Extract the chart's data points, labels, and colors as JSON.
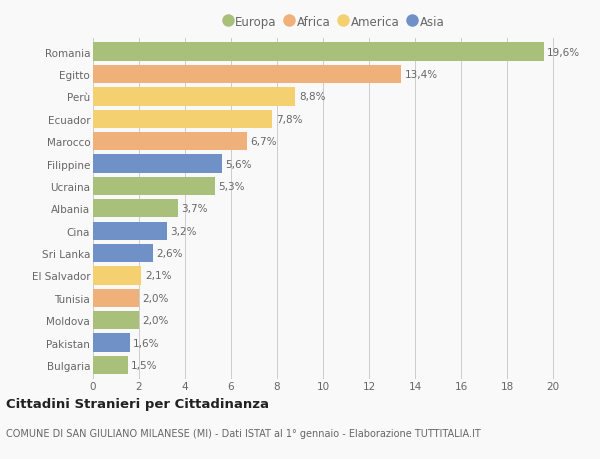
{
  "countries": [
    "Romania",
    "Egitto",
    "Perù",
    "Ecuador",
    "Marocco",
    "Filippine",
    "Ucraina",
    "Albania",
    "Cina",
    "Sri Lanka",
    "El Salvador",
    "Tunisia",
    "Moldova",
    "Pakistan",
    "Bulgaria"
  ],
  "values": [
    19.6,
    13.4,
    8.8,
    7.8,
    6.7,
    5.6,
    5.3,
    3.7,
    3.2,
    2.6,
    2.1,
    2.0,
    2.0,
    1.6,
    1.5
  ],
  "labels": [
    "19,6%",
    "13,4%",
    "8,8%",
    "7,8%",
    "6,7%",
    "5,6%",
    "5,3%",
    "3,7%",
    "3,2%",
    "2,6%",
    "2,1%",
    "2,0%",
    "2,0%",
    "1,6%",
    "1,5%"
  ],
  "colors": [
    "#a8c07a",
    "#f0b07a",
    "#f5d070",
    "#f5d070",
    "#f0b07a",
    "#7090c8",
    "#a8c07a",
    "#a8c07a",
    "#7090c8",
    "#7090c8",
    "#f5d070",
    "#f0b07a",
    "#a8c07a",
    "#7090c8",
    "#a8c07a"
  ],
  "legend_labels": [
    "Europa",
    "Africa",
    "America",
    "Asia"
  ],
  "legend_colors": [
    "#a8c07a",
    "#f0b07a",
    "#f5d070",
    "#7090c8"
  ],
  "xlim": [
    0,
    21
  ],
  "xticks": [
    0,
    2,
    4,
    6,
    8,
    10,
    12,
    14,
    16,
    18,
    20
  ],
  "title": "Cittadini Stranieri per Cittadinanza",
  "subtitle": "COMUNE DI SAN GIULIANO MILANESE (MI) - Dati ISTAT al 1° gennaio - Elaborazione TUTTITALIA.IT",
  "bg_color": "#f9f9f9",
  "bar_height": 0.82,
  "grid_color": "#cccccc",
  "text_color": "#666666",
  "label_fontsize": 7.5,
  "tick_fontsize": 7.5,
  "title_fontsize": 9.5,
  "subtitle_fontsize": 7.0
}
